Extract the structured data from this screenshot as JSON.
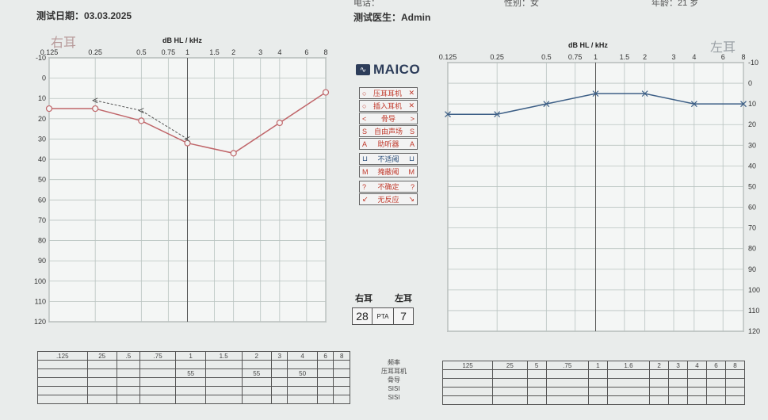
{
  "header": {
    "test_date_label": "测试日期：03.03.2025",
    "doctor_label": "测试医生：Admin",
    "phone_label": "电话：",
    "sex_label": "性别：女",
    "age_label": "年龄：21 岁"
  },
  "logo": {
    "text": "MAICO",
    "mark": "∿"
  },
  "legend": {
    "rows": [
      {
        "left": "○",
        "label": "压耳耳机",
        "right": "✕",
        "color": "red"
      },
      {
        "left": "○",
        "label": "插入耳机",
        "right": "✕",
        "color": "red"
      },
      {
        "left": "<",
        "label": "骨导",
        "right": ">",
        "color": "red"
      },
      {
        "left": "S",
        "label": "自由声场",
        "right": "S",
        "color": "red"
      },
      {
        "left": "A",
        "label": "助听器",
        "right": "A",
        "color": "red"
      },
      {
        "left": "⊔",
        "label": "不适阈",
        "right": "⊔",
        "color": "blue"
      },
      {
        "left": "M",
        "label": "掩蔽阈",
        "right": "M",
        "color": "blue"
      },
      {
        "left": "?",
        "label": "不确定",
        "right": "?",
        "color": "red"
      },
      {
        "left": "↙",
        "label": "无反应",
        "right": "↘",
        "color": "red"
      }
    ]
  },
  "pta": {
    "right_label": "右耳",
    "left_label": "左耳",
    "right_value": "28",
    "mid_label": "PTA",
    "left_value": "7"
  },
  "bottom_table": {
    "freqs": [
      ".125",
      "25",
      ".5",
      ".75",
      "1",
      "1.5",
      "2",
      "3",
      "4",
      "6",
      "8"
    ],
    "left_freqs": [
      "125",
      "25",
      "5",
      ".75",
      "1",
      "1.6",
      "2",
      "3",
      "4",
      "6",
      "8"
    ],
    "right_mask_row": [
      "",
      "",
      "",
      "",
      "55",
      "",
      "55",
      "",
      "50",
      "",
      ""
    ],
    "mid_labels": [
      "频率",
      "压耳耳机",
      "骨导",
      "SISI",
      "SISI"
    ]
  },
  "chart_data": [
    {
      "type": "line",
      "title": "右耳",
      "xlabel": "dB HL / kHz",
      "x_ticks": [
        "0.125",
        "0.25",
        "0.5",
        "0.75",
        "1",
        "1.5",
        "2",
        "3",
        "4",
        "6",
        "8"
      ],
      "y_ticks": [
        "-10",
        "0",
        "10",
        "20",
        "30",
        "40",
        "50",
        "60",
        "70",
        "80",
        "90",
        "100",
        "110",
        "120"
      ],
      "ylim": [
        -10,
        120
      ],
      "y_inverted": true,
      "series": [
        {
          "color": "#c0666a",
          "style": "solid",
          "marker": "circle",
          "x": [
            0.125,
            0.25,
            0.5,
            1,
            2,
            4,
            8
          ],
          "y": [
            15,
            15,
            21,
            32,
            37,
            22,
            7
          ]
        },
        {
          "color": "#555555",
          "style": "dashed",
          "marker": "bone-left",
          "x": [
            0.25,
            0.5,
            1
          ],
          "y": [
            11,
            16,
            30
          ]
        }
      ]
    },
    {
      "type": "line",
      "title": "左耳",
      "xlabel": "dB HL / kHz",
      "x_ticks": [
        "0.125",
        "0.25",
        "0.5",
        "0.75",
        "1",
        "1.5",
        "2",
        "3",
        "4",
        "6",
        "8"
      ],
      "y_ticks": [
        "-10",
        "0",
        "10",
        "20",
        "30",
        "40",
        "50",
        "60",
        "70",
        "80",
        "90",
        "100",
        "110",
        "120"
      ],
      "ylim": [
        -10,
        120
      ],
      "y_inverted": true,
      "series": [
        {
          "color": "#3d5f86",
          "style": "solid",
          "marker": "cross",
          "x": [
            0.125,
            0.25,
            0.5,
            1,
            2,
            4,
            8
          ],
          "y": [
            15,
            15,
            10,
            5,
            5,
            10,
            10
          ]
        }
      ]
    }
  ]
}
